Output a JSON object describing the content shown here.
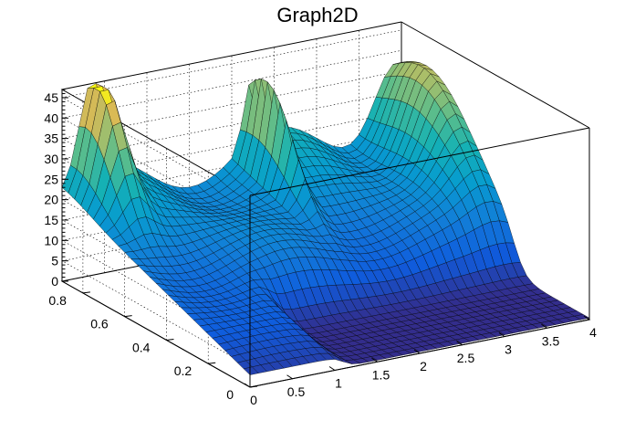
{
  "chart_data": {
    "type": "surface",
    "title": "Graph2D",
    "xlabel": "",
    "ylabel": "",
    "zlabel": "",
    "xlim": [
      0,
      4
    ],
    "ylim": [
      0,
      0.9
    ],
    "zlim": [
      0,
      47
    ],
    "x_ticks": [
      "0",
      "0.5",
      "1",
      "1.5",
      "2",
      "2.5",
      "3",
      "3.5",
      "4"
    ],
    "x_tick_values": [
      0,
      0.5,
      1,
      1.5,
      2,
      2.5,
      3,
      3.5,
      4
    ],
    "y_ticks": [
      "0",
      "0.2",
      "0.4",
      "0.6",
      "0.8"
    ],
    "y_tick_values": [
      0,
      0.2,
      0.4,
      0.6,
      0.8
    ],
    "z_ticks": [
      "0",
      "5",
      "10",
      "15",
      "20",
      "25",
      "30",
      "35",
      "40",
      "45"
    ],
    "z_tick_values": [
      0,
      5,
      10,
      15,
      20,
      25,
      30,
      35,
      40,
      45
    ],
    "palette": "kBird",
    "grid": true,
    "surface_peaks": [
      {
        "x": 0.35,
        "y": 0.85,
        "z": 44
      },
      {
        "x": 2.2,
        "y": 0.8,
        "z": 40
      },
      {
        "x": 3.9,
        "y": 0.75,
        "z": 43
      }
    ],
    "surface_notes": "z near 0 for x > 1.2 and y < 0.35; background level rising from about 3 at y=0 to about 22 at y=0.9",
    "colors": {
      "palette_low": "#352a87",
      "palette_mid": "#21b1b1",
      "palette_high": "#f9fb0e"
    }
  }
}
